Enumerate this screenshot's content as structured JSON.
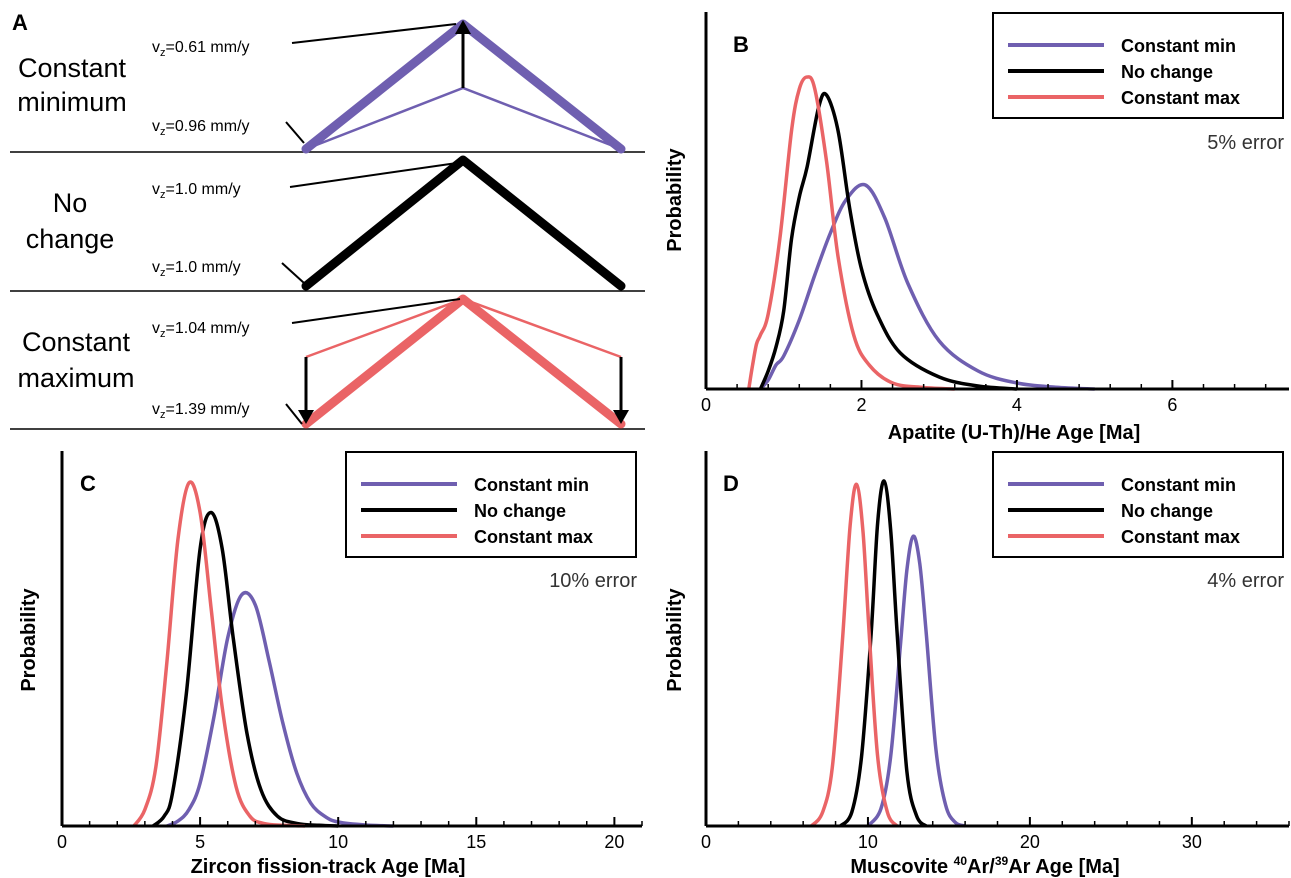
{
  "colors": {
    "min": "#6f5fb0",
    "none": "#000000",
    "max": "#ea6466"
  },
  "panel_a": {
    "letter": "A",
    "scenarios": [
      {
        "id": "min",
        "label_lines": [
          "Constant",
          "minimum"
        ],
        "vz_top": {
          "prefix": "v",
          "sub": "z",
          "value": "=0.61 mm/y"
        },
        "vz_bottom": {
          "prefix": "v",
          "sub": "z",
          "value": "=0.96 mm/y"
        }
      },
      {
        "id": "none",
        "label_lines": [
          "No",
          "change"
        ],
        "vz_top": {
          "prefix": "v",
          "sub": "z",
          "value": "=1.0 mm/y"
        },
        "vz_bottom": {
          "prefix": "v",
          "sub": "z",
          "value": "=1.0 mm/y"
        }
      },
      {
        "id": "max",
        "label_lines": [
          "Constant",
          "maximum"
        ],
        "vz_top": {
          "prefix": "v",
          "sub": "z",
          "value": "=1.04 mm/y"
        },
        "vz_bottom": {
          "prefix": "v",
          "sub": "z",
          "value": "=1.39 mm/y"
        }
      }
    ]
  },
  "chart_data": [
    {
      "panel": "B",
      "type": "line",
      "error_note": "5% error",
      "xlabel": "Apatite (U-Th)/He Age [Ma]",
      "ylabel": "Probability",
      "xlim": [
        0,
        7.5
      ],
      "xticks": [
        0,
        2,
        4,
        6
      ],
      "legend": "top-right",
      "series": [
        {
          "name": "Constant min",
          "color_key": "min",
          "peak_x": 2.05,
          "peak_y": 0.68,
          "x": [
            0.7,
            0.8,
            0.9,
            1.0,
            1.2,
            1.4,
            1.6,
            1.8,
            2.05,
            2.3,
            2.6,
            3.0,
            3.5,
            4.0,
            4.5,
            5.0
          ],
          "y": [
            0,
            0.03,
            0.08,
            0.11,
            0.23,
            0.38,
            0.52,
            0.63,
            0.68,
            0.57,
            0.35,
            0.16,
            0.06,
            0.02,
            0.006,
            0
          ]
        },
        {
          "name": "No change",
          "color_key": "none",
          "peak_x": 1.55,
          "peak_y": 0.98,
          "x": [
            0.7,
            0.8,
            0.9,
            1.0,
            1.1,
            1.2,
            1.3,
            1.45,
            1.55,
            1.7,
            1.85,
            2.0,
            2.2,
            2.5,
            3.0,
            3.5,
            4.0
          ],
          "y": [
            0,
            0.06,
            0.14,
            0.26,
            0.5,
            0.64,
            0.74,
            0.94,
            0.98,
            0.86,
            0.6,
            0.4,
            0.25,
            0.12,
            0.04,
            0.01,
            0
          ]
        },
        {
          "name": "Constant max",
          "color_key": "max",
          "peak_x": 1.3,
          "peak_y": 1.04,
          "x": [
            0.55,
            0.6,
            0.65,
            0.7,
            0.8,
            0.95,
            1.1,
            1.2,
            1.3,
            1.4,
            1.55,
            1.7,
            1.9,
            2.1,
            2.4,
            2.8,
            3.2
          ],
          "y": [
            0,
            0.08,
            0.15,
            0.18,
            0.25,
            0.5,
            0.86,
            1.0,
            1.04,
            1.0,
            0.76,
            0.44,
            0.18,
            0.08,
            0.02,
            0.005,
            0
          ]
        }
      ]
    },
    {
      "panel": "C",
      "type": "line",
      "error_note": "10% error",
      "xlabel": "Zircon fission-track Age [Ma]",
      "ylabel": "Probability",
      "xlim": [
        0,
        21
      ],
      "xticks": [
        0,
        5,
        10,
        15,
        20
      ],
      "legend": "top-right",
      "series": [
        {
          "name": "Constant min",
          "color_key": "min",
          "peak_x": 6.5,
          "peak_y": 0.7,
          "x": [
            3.8,
            4.2,
            4.6,
            5.0,
            5.5,
            6.0,
            6.5,
            7.0,
            7.5,
            8.0,
            8.5,
            9.0,
            9.5,
            10.0,
            11.0,
            12.0
          ],
          "y": [
            0,
            0.015,
            0.05,
            0.13,
            0.33,
            0.57,
            0.7,
            0.67,
            0.5,
            0.31,
            0.16,
            0.07,
            0.03,
            0.012,
            0.003,
            0
          ]
        },
        {
          "name": "No change",
          "color_key": "none",
          "peak_x": 5.4,
          "peak_y": 0.95,
          "x": [
            3.3,
            3.7,
            4.0,
            4.5,
            5.0,
            5.4,
            5.8,
            6.2,
            6.7,
            7.2,
            7.8,
            8.5,
            9.3,
            10.0
          ],
          "y": [
            0,
            0.03,
            0.1,
            0.4,
            0.84,
            0.95,
            0.84,
            0.57,
            0.28,
            0.11,
            0.03,
            0.008,
            0.002,
            0
          ]
        },
        {
          "name": "Constant max",
          "color_key": "max",
          "peak_x": 4.6,
          "peak_y": 1.04,
          "x": [
            2.6,
            3.0,
            3.4,
            3.8,
            4.2,
            4.6,
            5.0,
            5.4,
            5.8,
            6.3,
            6.8,
            7.3,
            8.0,
            8.8
          ],
          "y": [
            0,
            0.05,
            0.18,
            0.5,
            0.87,
            1.04,
            0.95,
            0.66,
            0.36,
            0.12,
            0.03,
            0.008,
            0.002,
            0
          ]
        }
      ]
    },
    {
      "panel": "D",
      "type": "line",
      "error_note": "4% error",
      "xlabel_parts": {
        "before": "Muscovite ",
        "sup1": "40",
        "mid": "Ar/",
        "sup2": "39",
        "after": "Ar Age [Ma]"
      },
      "ylabel": "Probability",
      "xlim": [
        0,
        36
      ],
      "xticks": [
        0,
        10,
        20,
        30
      ],
      "legend": "top-right",
      "series": [
        {
          "name": "Constant min",
          "color_key": "min",
          "peak_x": 12.8,
          "peak_y": 0.84,
          "x": [
            10.0,
            10.8,
            11.4,
            12.0,
            12.4,
            12.8,
            13.2,
            13.6,
            14.2,
            14.8,
            15.4,
            16.0
          ],
          "y": [
            0,
            0.05,
            0.2,
            0.52,
            0.74,
            0.84,
            0.76,
            0.56,
            0.22,
            0.06,
            0.01,
            0
          ]
        },
        {
          "name": "No change",
          "color_key": "none",
          "peak_x": 11.0,
          "peak_y": 1.0,
          "x": [
            8.3,
            9.0,
            9.6,
            10.2,
            10.6,
            11.0,
            11.4,
            11.8,
            12.4,
            13.0,
            13.6
          ],
          "y": [
            0,
            0.04,
            0.2,
            0.56,
            0.88,
            1.0,
            0.86,
            0.56,
            0.16,
            0.03,
            0
          ]
        },
        {
          "name": "Constant max",
          "color_key": "max",
          "peak_x": 9.3,
          "peak_y": 0.99,
          "x": [
            6.5,
            7.2,
            7.8,
            8.4,
            8.9,
            9.3,
            9.7,
            10.1,
            10.6,
            11.2,
            11.8
          ],
          "y": [
            0,
            0.04,
            0.17,
            0.52,
            0.87,
            0.99,
            0.85,
            0.54,
            0.2,
            0.04,
            0
          ]
        }
      ]
    }
  ]
}
